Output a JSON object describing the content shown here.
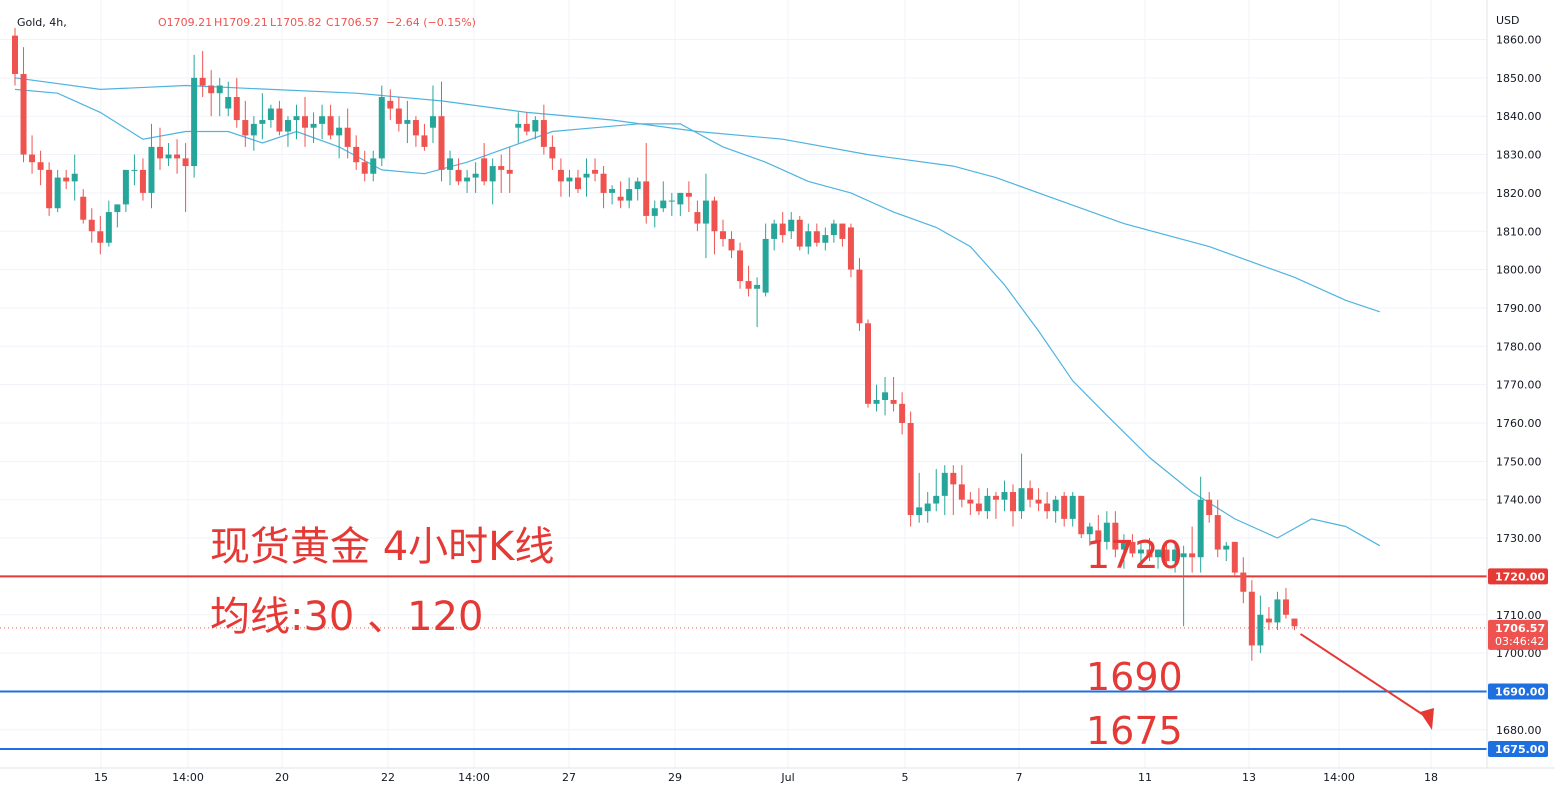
{
  "header": {
    "symbol": "Gold, 4h,",
    "o": "O1709.21",
    "h": "H1709.21",
    "l": "L1705.82",
    "c": "C1706.57",
    "change": "−2.64 (−0.15%)"
  },
  "annotations": {
    "title": "现货黄金 4小时K线",
    "ma_note": "均线:30 、120",
    "level_1720": "1720",
    "level_1690": "1690",
    "level_1675": "1675"
  },
  "price_labels": {
    "currency": "USD",
    "last_price": "1706.57",
    "countdown": "03:46:42",
    "tag_1720": "1720.00",
    "tag_1690": "1690.00",
    "tag_1675": "1675.00"
  },
  "colors": {
    "up": "#26a69a",
    "down": "#ef5350",
    "ma": "#4fb3e0",
    "resistance": "#e53935",
    "support": "#1e6fe0",
    "arrow": "#e53935",
    "annotation": "#e53935"
  },
  "chart_data": {
    "type": "candlestick",
    "title": "现货黄金 4小时K线",
    "ylabel": "USD",
    "ylim": [
      1667,
      1867
    ],
    "y_ticks": [
      1680,
      1690,
      1700,
      1710,
      1720,
      1730,
      1740,
      1750,
      1760,
      1770,
      1780,
      1790,
      1800,
      1810,
      1820,
      1830,
      1840,
      1850,
      1860
    ],
    "x_labels": [
      "15",
      "14:00",
      "20",
      "22",
      "14:00",
      "27",
      "29",
      "Jul",
      "5",
      "7",
      "11",
      "13",
      "14:00",
      "18"
    ],
    "horizontal_levels": [
      {
        "value": 1720,
        "label": "1720",
        "color": "#e53935"
      },
      {
        "value": 1690,
        "label": "1690",
        "color": "#1e6fe0"
      },
      {
        "value": 1675,
        "label": "1675",
        "color": "#1e6fe0"
      }
    ],
    "last_price": 1706.57,
    "series": [
      {
        "name": "MA30",
        "type": "line",
        "points": [
          [
            0,
            1847
          ],
          [
            5,
            1846
          ],
          [
            10,
            1841
          ],
          [
            15,
            1834
          ],
          [
            20,
            1836
          ],
          [
            25,
            1836
          ],
          [
            29,
            1833
          ],
          [
            33,
            1836
          ],
          [
            38,
            1832
          ],
          [
            43,
            1826
          ],
          [
            48,
            1825
          ],
          [
            53,
            1828
          ],
          [
            58,
            1832
          ],
          [
            63,
            1836
          ],
          [
            68,
            1837
          ],
          [
            73,
            1838
          ],
          [
            78,
            1838
          ],
          [
            83,
            1832
          ],
          [
            88,
            1828
          ],
          [
            93,
            1823
          ],
          [
            98,
            1820
          ],
          [
            103,
            1815
          ],
          [
            108,
            1811
          ],
          [
            112,
            1806
          ],
          [
            116,
            1796
          ],
          [
            120,
            1784
          ],
          [
            124,
            1771
          ],
          [
            128,
            1762
          ],
          [
            133,
            1751
          ],
          [
            138,
            1742
          ],
          [
            143,
            1735
          ],
          [
            148,
            1730
          ],
          [
            152,
            1735
          ],
          [
            156,
            1733
          ],
          [
            160,
            1728
          ]
        ]
      },
      {
        "name": "MA120",
        "type": "line",
        "points": [
          [
            0,
            1850
          ],
          [
            10,
            1847
          ],
          [
            20,
            1848
          ],
          [
            30,
            1847
          ],
          [
            40,
            1846
          ],
          [
            50,
            1844
          ],
          [
            60,
            1841
          ],
          [
            70,
            1839
          ],
          [
            80,
            1836
          ],
          [
            90,
            1834
          ],
          [
            100,
            1830
          ],
          [
            110,
            1827
          ],
          [
            115,
            1824
          ],
          [
            120,
            1820
          ],
          [
            130,
            1812
          ],
          [
            140,
            1806
          ],
          [
            150,
            1798
          ],
          [
            156,
            1792
          ],
          [
            160,
            1789
          ]
        ]
      }
    ],
    "candles": [
      [
        1861,
        1863,
        1848,
        1851
      ],
      [
        1851,
        1858,
        1828,
        1830
      ],
      [
        1830,
        1835,
        1825,
        1828
      ],
      [
        1828,
        1831,
        1822,
        1826
      ],
      [
        1826,
        1828,
        1814,
        1816
      ],
      [
        1816,
        1826,
        1815,
        1824
      ],
      [
        1824,
        1826,
        1821,
        1823
      ],
      [
        1823,
        1830,
        1818,
        1825
      ],
      [
        1819,
        1821,
        1812,
        1813
      ],
      [
        1813,
        1816,
        1807,
        1810
      ],
      [
        1810,
        1814,
        1804,
        1807
      ],
      [
        1807,
        1818,
        1806,
        1815
      ],
      [
        1815,
        1817,
        1811,
        1817
      ],
      [
        1817,
        1826,
        1815,
        1826
      ],
      [
        1826,
        1830,
        1822,
        1826
      ],
      [
        1826,
        1829,
        1818,
        1820
      ],
      [
        1820,
        1838,
        1816,
        1832
      ],
      [
        1832,
        1837,
        1826,
        1829
      ],
      [
        1829,
        1833,
        1827,
        1830
      ],
      [
        1830,
        1834,
        1825,
        1829
      ],
      [
        1829,
        1833,
        1815,
        1827
      ],
      [
        1827,
        1856,
        1824,
        1850
      ],
      [
        1850,
        1857,
        1845,
        1848
      ],
      [
        1848,
        1852,
        1840,
        1846
      ],
      [
        1846,
        1850,
        1840,
        1848
      ],
      [
        1842,
        1849,
        1840,
        1845
      ],
      [
        1845,
        1850,
        1837,
        1839
      ],
      [
        1839,
        1844,
        1832,
        1835
      ],
      [
        1835,
        1840,
        1831,
        1838
      ],
      [
        1838,
        1846,
        1834,
        1839
      ],
      [
        1839,
        1843,
        1837,
        1842
      ],
      [
        1842,
        1844,
        1835,
        1836
      ],
      [
        1836,
        1840,
        1832,
        1839
      ],
      [
        1839,
        1843,
        1834,
        1840
      ],
      [
        1840,
        1845,
        1832,
        1837
      ],
      [
        1837,
        1841,
        1833,
        1838
      ],
      [
        1838,
        1843,
        1834,
        1840
      ],
      [
        1840,
        1843,
        1834,
        1835
      ],
      [
        1835,
        1840,
        1829,
        1837
      ],
      [
        1837,
        1842,
        1829,
        1832
      ],
      [
        1832,
        1835,
        1826,
        1828
      ],
      [
        1828,
        1831,
        1823,
        1825
      ],
      [
        1825,
        1831,
        1823,
        1829
      ],
      [
        1829,
        1848,
        1827,
        1845
      ],
      [
        1844,
        1847,
        1839,
        1842
      ],
      [
        1842,
        1845,
        1836,
        1838
      ],
      [
        1838,
        1844,
        1833,
        1839
      ],
      [
        1839,
        1840,
        1832,
        1835
      ],
      [
        1835,
        1838,
        1831,
        1832
      ],
      [
        1837,
        1848,
        1833,
        1840
      ],
      [
        1840,
        1849,
        1823,
        1826
      ],
      [
        1826,
        1831,
        1822,
        1829
      ],
      [
        1826,
        1829,
        1822,
        1823
      ],
      [
        1823,
        1826,
        1820,
        1824
      ],
      [
        1824,
        1828,
        1820,
        1825
      ],
      [
        1829,
        1833,
        1822,
        1823
      ],
      [
        1823,
        1829,
        1817,
        1827
      ],
      [
        1827,
        1830,
        1820,
        1826
      ],
      [
        1826,
        1832,
        1820,
        1825
      ],
      [
        1837,
        1841,
        1833,
        1838
      ],
      [
        1838,
        1841,
        1835,
        1836
      ],
      [
        1836,
        1840,
        1834,
        1839
      ],
      [
        1839,
        1843,
        1830,
        1832
      ],
      [
        1832,
        1835,
        1826,
        1829
      ],
      [
        1826,
        1829,
        1819,
        1823
      ],
      [
        1823,
        1826,
        1819,
        1824
      ],
      [
        1824,
        1826,
        1820,
        1821
      ],
      [
        1824,
        1829,
        1819,
        1825
      ],
      [
        1826,
        1829,
        1823,
        1825
      ],
      [
        1825,
        1827,
        1816,
        1820
      ],
      [
        1820,
        1822,
        1817,
        1821
      ],
      [
        1819,
        1823,
        1816,
        1818
      ],
      [
        1818,
        1824,
        1816,
        1821
      ],
      [
        1821,
        1824,
        1818,
        1823
      ],
      [
        1823,
        1833,
        1812,
        1814
      ],
      [
        1814,
        1818,
        1811,
        1816
      ],
      [
        1816,
        1823,
        1815,
        1818
      ],
      [
        1818,
        1820,
        1814,
        1818
      ],
      [
        1817,
        1820,
        1814,
        1820
      ],
      [
        1820,
        1823,
        1815,
        1819
      ],
      [
        1815,
        1818,
        1810,
        1812
      ],
      [
        1812,
        1825,
        1803,
        1818
      ],
      [
        1818,
        1819,
        1804,
        1810
      ],
      [
        1810,
        1813,
        1806,
        1808
      ],
      [
        1808,
        1810,
        1803,
        1805
      ],
      [
        1805,
        1807,
        1795,
        1797
      ],
      [
        1797,
        1801,
        1793,
        1795
      ],
      [
        1795,
        1798,
        1785,
        1796
      ],
      [
        1794,
        1812,
        1793,
        1808
      ],
      [
        1808,
        1813,
        1805,
        1812
      ],
      [
        1812,
        1815,
        1807,
        1809
      ],
      [
        1810,
        1815,
        1808,
        1813
      ],
      [
        1813,
        1814,
        1805,
        1806
      ],
      [
        1806,
        1812,
        1804,
        1810
      ],
      [
        1810,
        1812,
        1806,
        1807
      ],
      [
        1807,
        1811,
        1805,
        1809
      ],
      [
        1809,
        1813,
        1807,
        1812
      ],
      [
        1812,
        1812,
        1806,
        1808
      ],
      [
        1811,
        1812,
        1798,
        1800
      ],
      [
        1800,
        1803,
        1784,
        1786
      ],
      [
        1786,
        1787,
        1764,
        1765
      ],
      [
        1765,
        1770,
        1763,
        1766
      ],
      [
        1766,
        1772,
        1762,
        1768
      ],
      [
        1766,
        1772,
        1763,
        1765
      ],
      [
        1765,
        1768,
        1757,
        1760
      ],
      [
        1760,
        1763,
        1733,
        1736
      ],
      [
        1736,
        1747,
        1734,
        1738
      ],
      [
        1737,
        1742,
        1734,
        1739
      ],
      [
        1739,
        1748,
        1737,
        1741
      ],
      [
        1741,
        1749,
        1736,
        1747
      ],
      [
        1747,
        1749,
        1736,
        1744
      ],
      [
        1744,
        1749,
        1738,
        1740
      ],
      [
        1740,
        1742,
        1736,
        1739
      ],
      [
        1739,
        1743,
        1736,
        1737
      ],
      [
        1737,
        1743,
        1735,
        1741
      ],
      [
        1741,
        1742,
        1735,
        1740
      ],
      [
        1740,
        1745,
        1737,
        1742
      ],
      [
        1742,
        1744,
        1733,
        1737
      ],
      [
        1737,
        1752,
        1735,
        1743
      ],
      [
        1743,
        1745,
        1738,
        1740
      ],
      [
        1740,
        1743,
        1737,
        1739
      ],
      [
        1739,
        1742,
        1735,
        1737
      ],
      [
        1737,
        1741,
        1734,
        1740
      ],
      [
        1741,
        1742,
        1733,
        1735
      ],
      [
        1735,
        1742,
        1733,
        1741
      ],
      [
        1741,
        1741,
        1730,
        1731
      ],
      [
        1731,
        1734,
        1728,
        1733
      ],
      [
        1732,
        1736,
        1728,
        1729
      ],
      [
        1729,
        1737,
        1727,
        1734
      ],
      [
        1734,
        1737,
        1725,
        1727
      ],
      [
        1727,
        1731,
        1722,
        1729
      ],
      [
        1729,
        1731,
        1725,
        1726
      ],
      [
        1726,
        1729,
        1723,
        1727
      ],
      [
        1727,
        1730,
        1724,
        1725
      ],
      [
        1725,
        1727,
        1722,
        1727
      ],
      [
        1727,
        1729,
        1723,
        1724
      ],
      [
        1724,
        1729,
        1721,
        1727
      ],
      [
        1725,
        1728,
        1707,
        1726
      ],
      [
        1726,
        1733,
        1721,
        1725
      ],
      [
        1725,
        1746,
        1721,
        1740
      ],
      [
        1740,
        1742,
        1734,
        1736
      ],
      [
        1736,
        1740,
        1725,
        1727
      ],
      [
        1727,
        1729,
        1724,
        1728
      ],
      [
        1729,
        1729,
        1720,
        1721
      ],
      [
        1721,
        1725,
        1713,
        1716
      ],
      [
        1716,
        1719,
        1698,
        1702
      ],
      [
        1702,
        1715,
        1700,
        1710
      ],
      [
        1709,
        1712,
        1706,
        1708
      ],
      [
        1708,
        1716,
        1706,
        1714
      ],
      [
        1714,
        1717,
        1709,
        1710
      ],
      [
        1709,
        1709,
        1706,
        1707
      ]
    ]
  }
}
